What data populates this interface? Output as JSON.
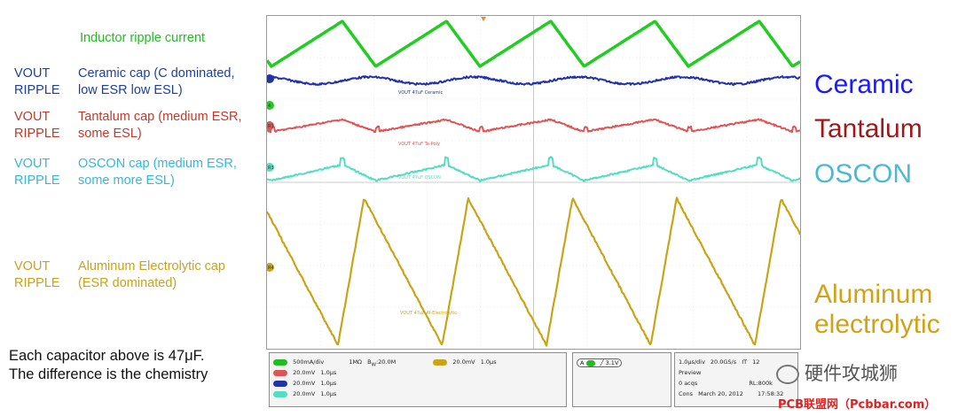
{
  "left_labels": {
    "inductor": "Inductor ripple current",
    "ceramic_vout": [
      "VOUT",
      "RIPPLE"
    ],
    "ceramic_desc": [
      "Ceramic cap (C dominated,",
      "low ESR low ESL)"
    ],
    "tantalum_vout": [
      "VOUT",
      "RIPPLE"
    ],
    "tantalum_desc": [
      "Tantalum cap (medium ESR,",
      "some ESL)"
    ],
    "oscon_vout": [
      "VOUT",
      "RIPPLE"
    ],
    "oscon_desc": [
      "OSCON cap (medium ESR,",
      "some more ESL)"
    ],
    "alu_vout": [
      "VOUT",
      "RIPPLE"
    ],
    "alu_desc": [
      "Aluminum Electrolytic cap",
      "(ESR dominated)"
    ],
    "footer": [
      "Each capacitor above is 47μF.",
      "The difference is the chemistry"
    ]
  },
  "right_labels": {
    "ceramic": "Ceramic",
    "tantalum": "Tantalum",
    "oscon": "OSCON",
    "aluminum": [
      "Aluminum",
      "electrolytic"
    ]
  },
  "colors": {
    "inductor": "#22cc22",
    "ceramic": "#2233aa",
    "tantalum": "#dd5555",
    "oscon": "#55ddc0",
    "aluminum": "#c9a416",
    "ceramic_text": "#1f3f9f",
    "tantalum_text": "#c0392b",
    "oscon_text": "#38b6d6",
    "aluminum_text": "#c8a21c",
    "big_ceramic": "#1a1aff",
    "big_tantalum": "#9b1b1b",
    "big_oscon": "#49b9d8",
    "big_aluminum": "#d1a219"
  },
  "scope": {
    "trace_labels": {
      "ceramic": "VOUT 47uF Ceramic",
      "tantalum": "VOUT 47uF Ta-Poly",
      "oscon": "VOUT 47uF OSCON",
      "aluminum": "VOUT 47uF Al-Electrolytic"
    },
    "markers": {
      "inductor": "4",
      "ceramic": "",
      "tantalum": "R1",
      "oscon": "R3",
      "aluminum": "R4"
    },
    "status": {
      "ch1_scale": "500mA/div",
      "impedance": "1MΩ",
      "bw": "B",
      "bw_sub": "W",
      "bw_val": ":20.0M",
      "r4_scale": "20.0mV",
      "r4_time": "1.0μs",
      "r1_scale": "20.0mV",
      "r1_time": "1.0μs",
      "r2_scale": "20.0mV",
      "r2_time": "1.0μs",
      "r3_scale": "20.0mV",
      "r3_time": "1.0μs",
      "trigger": "3.1V",
      "trigger_ch": "A",
      "timebase": "1.0μs/div",
      "sample": "20.0GS/s",
      "it": "IT",
      "it_val": "12",
      "mode": "Preview",
      "acqs": "0 acqs",
      "rl": "RL:800k",
      "cons": "Cons",
      "date": "March 20, 2012",
      "time": "17:58:32"
    }
  },
  "watermark": {
    "cn": "硬件攻城狮",
    "url": "PCB联盟网（Pcbbar.com）"
  }
}
